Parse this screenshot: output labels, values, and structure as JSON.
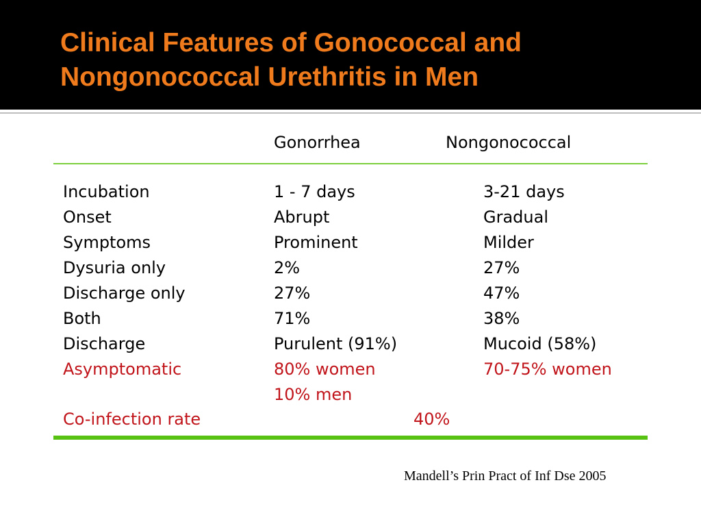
{
  "slide": {
    "title": "Clinical Features of Gonococcal and\nNongonococcal Urethritis in Men",
    "citation": "Mandell’s Prin Pract of Inf Dse 2005"
  },
  "table": {
    "headers": [
      "",
      "Gonorrhea",
      "Nongonococcal"
    ],
    "rows": [
      {
        "label": "Incubation",
        "gonorrhea": "1 - 7 days",
        "nongonococcal": "3-21 days"
      },
      {
        "label": "Onset",
        "gonorrhea": "Abrupt",
        "nongonococcal": "Gradual"
      },
      {
        "label": "Symptoms",
        "gonorrhea": "Prominent",
        "nongonococcal": "Milder"
      },
      {
        "label": "Dysuria only",
        "gonorrhea": "2%",
        "nongonococcal": "27%"
      },
      {
        "label": "Discharge only",
        "gonorrhea": "27%",
        "nongonococcal": "47%"
      },
      {
        "label": "Both",
        "gonorrhea": "71%",
        "nongonococcal": "38%"
      },
      {
        "label": "Discharge",
        "gonorrhea": "Purulent (91%)",
        "nongonococcal": "Mucoid (58%)"
      },
      {
        "label": "Asymptomatic",
        "gonorrhea": "80% women",
        "gonorrhea_line2": "10% men",
        "nongonococcal": "70-75% women"
      },
      {
        "label": "Co-infection rate",
        "combined": "40%"
      }
    ]
  },
  "colors": {
    "title": "#f07b1d",
    "title_band": "#000000",
    "highlight_text": "#c0141a",
    "rule_green": "#58c212"
  }
}
